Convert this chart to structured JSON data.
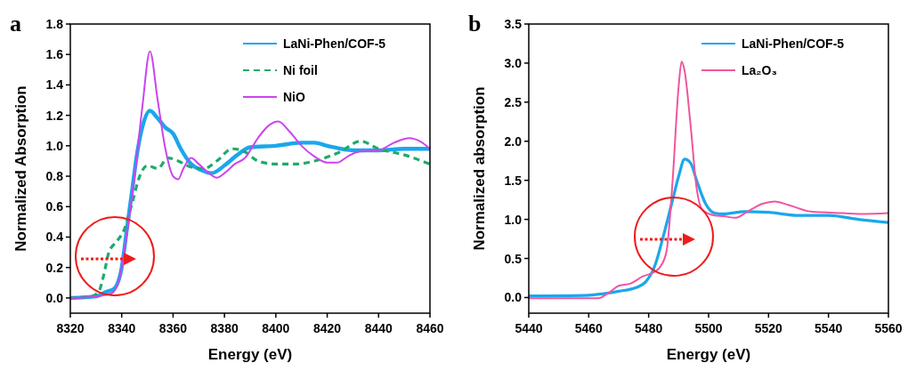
{
  "chart_data": [
    {
      "type": "line",
      "title": "a",
      "xlabel": "Energy (eV)",
      "ylabel": "Normalized Absorption",
      "xlim": [
        8320,
        8460
      ],
      "xticks": [
        8320,
        8340,
        8360,
        8380,
        8400,
        8420,
        8440,
        8460
      ],
      "ylim": [
        -0.1,
        1.8
      ],
      "yticks": [
        {
          "value": 0,
          "label": "0.0"
        },
        {
          "value": 0.2,
          "label": "0.2"
        },
        {
          "value": 0.4,
          "label": "0.4"
        },
        {
          "value": 0.6,
          "label": "0.6"
        },
        {
          "value": 0.8,
          "label": "0.8"
        },
        {
          "value": 1,
          "label": "1.0"
        },
        {
          "value": 1.2,
          "label": "1.2"
        },
        {
          "value": 1.4,
          "label": "1.4"
        },
        {
          "value": 1.6,
          "label": "1.6"
        },
        {
          "value": 1.8,
          "label": "1.8"
        }
      ],
      "legend": "top right",
      "grid": false,
      "series": [
        {
          "name": "LaNi-Phen/COF-5",
          "color": "#1aa7ec",
          "line_style": "solid",
          "x": [
            8320,
            8330,
            8334,
            8337,
            8340,
            8342,
            8344,
            8346,
            8348,
            8351,
            8354,
            8357,
            8360,
            8363,
            8367,
            8371,
            8375,
            8380,
            8385,
            8390,
            8400,
            8410,
            8415,
            8420,
            8430,
            8440,
            8450,
            8460
          ],
          "values": [
            0,
            0.01,
            0.04,
            0.06,
            0.2,
            0.45,
            0.7,
            0.95,
            1.12,
            1.23,
            1.18,
            1.12,
            1.08,
            0.98,
            0.88,
            0.84,
            0.82,
            0.87,
            0.94,
            0.99,
            1.0,
            1.02,
            1.02,
            1.0,
            0.97,
            0.97,
            0.98,
            0.98
          ]
        },
        {
          "name": "Ni foil",
          "color": "#1faa6b",
          "line_style": "dashed",
          "x": [
            8320,
            8328,
            8331,
            8333,
            8335,
            8338,
            8341,
            8344,
            8347,
            8350,
            8354,
            8358,
            8362,
            8367,
            8372,
            8377,
            8383,
            8388,
            8393,
            8400,
            8408,
            8415,
            8425,
            8433,
            8440,
            8450,
            8460
          ],
          "values": [
            0,
            0.01,
            0.04,
            0.15,
            0.3,
            0.37,
            0.45,
            0.62,
            0.8,
            0.87,
            0.85,
            0.92,
            0.9,
            0.86,
            0.85,
            0.9,
            0.98,
            0.96,
            0.9,
            0.88,
            0.88,
            0.9,
            0.96,
            1.03,
            0.98,
            0.94,
            0.88
          ]
        },
        {
          "name": "NiO",
          "color": "#cc44ee",
          "line_style": "solid",
          "x": [
            8320,
            8330,
            8336,
            8339,
            8342,
            8345,
            8348,
            8351,
            8354,
            8357,
            8360,
            8362,
            8364,
            8367,
            8370,
            8374,
            8377,
            8380,
            8384,
            8388,
            8393,
            8397,
            8401,
            8405,
            8410,
            8415,
            8420,
            8424,
            8428,
            8432,
            8440,
            8446,
            8452,
            8456,
            8460
          ],
          "values": [
            0,
            0.01,
            0.03,
            0.12,
            0.42,
            0.8,
            1.25,
            1.62,
            1.3,
            0.98,
            0.8,
            0.78,
            0.85,
            0.92,
            0.88,
            0.82,
            0.79,
            0.82,
            0.88,
            0.92,
            1.05,
            1.13,
            1.16,
            1.1,
            1.0,
            0.93,
            0.89,
            0.89,
            0.93,
            0.96,
            0.97,
            1.02,
            1.05,
            1.03,
            0.98
          ]
        }
      ]
    },
    {
      "type": "line",
      "title": "b",
      "xlabel": "Energy (eV)",
      "ylabel": "Normalized absorption",
      "xlim": [
        5440,
        5560
      ],
      "xticks": [
        5440,
        5460,
        5480,
        5500,
        5520,
        5540,
        5560
      ],
      "ylim": [
        -0.2,
        3.5
      ],
      "yticks": [
        {
          "value": 0,
          "label": "0.0"
        },
        {
          "value": 0.5,
          "label": "0.5"
        },
        {
          "value": 1,
          "label": "1.0"
        },
        {
          "value": 1.5,
          "label": "1.5"
        },
        {
          "value": 2,
          "label": "2.0"
        },
        {
          "value": 2.5,
          "label": "2.5"
        },
        {
          "value": 3,
          "label": "3.0"
        },
        {
          "value": 3.5,
          "label": "3.5"
        }
      ],
      "legend": "top right",
      "grid": false,
      "series": [
        {
          "name": "LaNi-Phen/COF-5",
          "color": "#1aa7ec",
          "line_style": "solid",
          "x": [
            5440,
            5460,
            5465,
            5470,
            5476,
            5479,
            5482,
            5485,
            5488,
            5490,
            5492,
            5494,
            5496,
            5499,
            5502,
            5505,
            5512,
            5520,
            5530,
            5540,
            5550,
            5560
          ],
          "values": [
            0.02,
            0.03,
            0.05,
            0.08,
            0.13,
            0.2,
            0.4,
            0.8,
            1.25,
            1.55,
            1.77,
            1.72,
            1.5,
            1.2,
            1.08,
            1.07,
            1.1,
            1.09,
            1.05,
            1.05,
            1.0,
            0.96
          ]
        },
        {
          "name": "La₂O₃",
          "color": "#f0559e",
          "line_style": "solid",
          "x": [
            5440,
            5463,
            5467,
            5470,
            5474,
            5478,
            5482,
            5484,
            5486,
            5488,
            5490,
            5491,
            5492,
            5494,
            5496,
            5498,
            5502,
            5505,
            5509,
            5513,
            5518,
            5522,
            5527,
            5534,
            5545,
            5552,
            5560
          ],
          "values": [
            -0.01,
            -0.01,
            0.07,
            0.15,
            0.18,
            0.27,
            0.33,
            0.4,
            0.6,
            1.5,
            2.7,
            3.02,
            2.9,
            2.2,
            1.4,
            1.12,
            1.05,
            1.04,
            1.02,
            1.1,
            1.2,
            1.23,
            1.18,
            1.1,
            1.08,
            1.07,
            1.08
          ]
        }
      ]
    }
  ]
}
